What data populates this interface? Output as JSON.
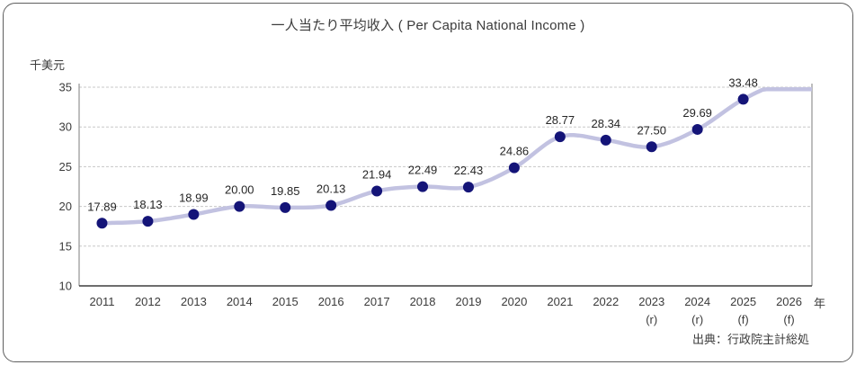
{
  "chart_data": {
    "type": "line",
    "title": "一人当たり平均收入 ( Per Capita National Income )",
    "ylabel": "千美元",
    "xlabel": "年",
    "source": "出典：行政院主計総処",
    "categories": [
      "2011",
      "2012",
      "2013",
      "2014",
      "2015",
      "2016",
      "2017",
      "2018",
      "2019",
      "2020",
      "2021",
      "2022",
      "2023",
      "2024",
      "2025",
      "2026"
    ],
    "category_sublabels": [
      "",
      "",
      "",
      "",
      "",
      "",
      "",
      "",
      "",
      "",
      "",
      "",
      "(r)",
      "(r)",
      "(f)",
      "(f)"
    ],
    "values": [
      17.89,
      18.13,
      18.99,
      20.0,
      19.85,
      20.13,
      21.94,
      22.49,
      22.43,
      24.86,
      28.77,
      28.34,
      27.5,
      29.69,
      33.48,
      null
    ],
    "last_point_note": "2026 (f) value is not labeled; the line rises to the axis maximum and is clipped flat at 35",
    "ylim": [
      10,
      35
    ],
    "y_ticks": [
      10,
      15,
      20,
      25,
      30,
      35
    ],
    "grid": "horizontal-dashed",
    "legend": "none",
    "line_style": "smoothed-with-markers",
    "colors": {
      "line": "#c2c2e1",
      "marker": "#141478",
      "grid": "#c8c8c8",
      "side_border": "#9a9a9a",
      "bottom_axis": "#3f3f3f",
      "text": "#3b3b3b",
      "data_label": "#262626"
    },
    "render": {
      "final_value_estimate": 36.0,
      "extend_past_last_category": true
    }
  }
}
